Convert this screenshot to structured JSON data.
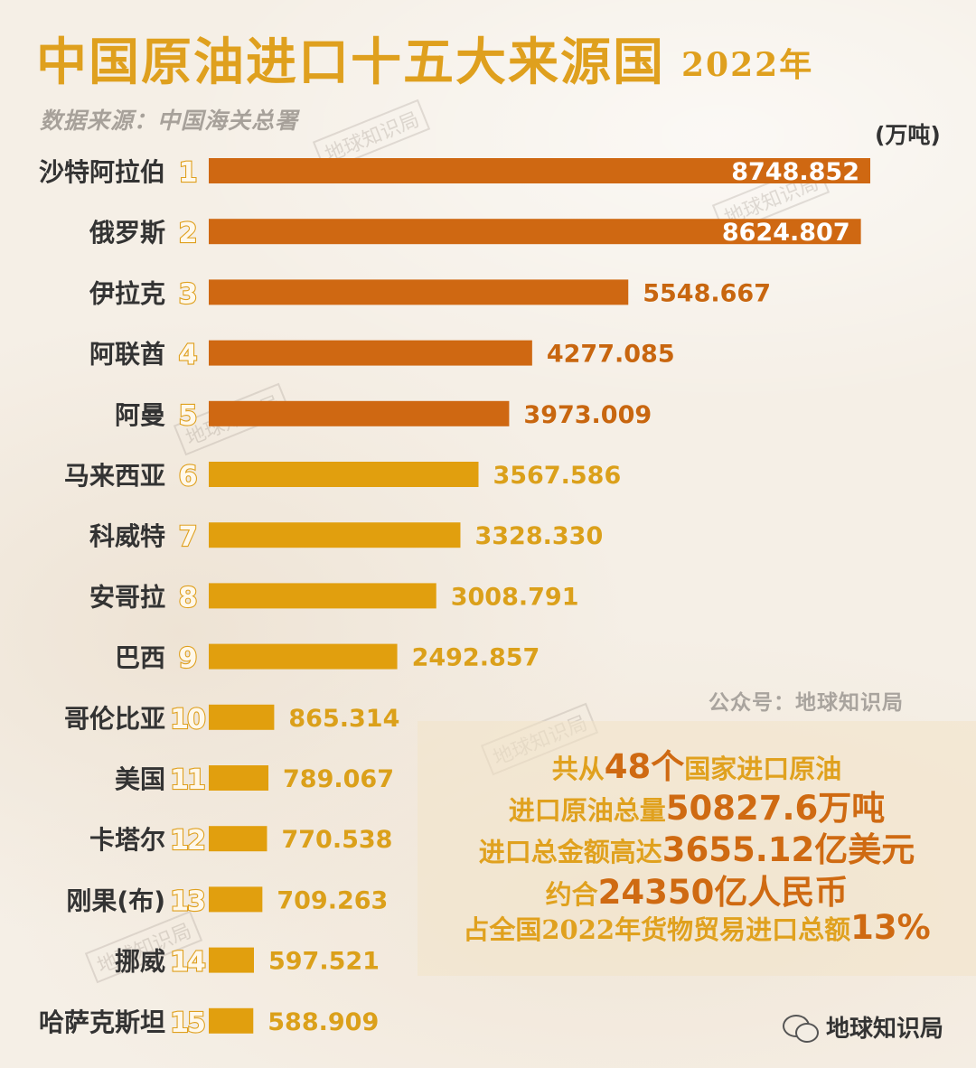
{
  "header": {
    "title": "中国原油进口十五大来源国",
    "year": "2022年",
    "source": "数据来源：中国海关总署",
    "unit": "(万吨)"
  },
  "watermark": "地球知识局",
  "credit": "公众号：地球知识局",
  "summary": {
    "line1": {
      "pre": "共从",
      "hl": "48个",
      "post": "国家进口原油"
    },
    "line2": {
      "pre": "进口原油总量",
      "hl": "50827.6万吨",
      "post": ""
    },
    "line3": {
      "pre": "进口总金额高达",
      "hl": "3655.12亿美元",
      "post": ""
    },
    "line4": {
      "pre": "约合",
      "hl": "24350亿人民币",
      "post": ""
    },
    "line5": {
      "pre": "占全国2022年货物贸易进口总额",
      "hl": "13%",
      "post": ""
    }
  },
  "footer": {
    "account": "地球知识局",
    "icon": "wechat-icon"
  },
  "colors": {
    "top5": "#cf6812",
    "rest": "#e19f0e",
    "label_top5": "#c8660f",
    "label_rest": "#dba01a",
    "number_stroke": "#dfa01e"
  },
  "chart_data": {
    "type": "bar",
    "orientation": "horizontal",
    "categories": [
      "沙特阿拉伯",
      "俄罗斯",
      "伊拉克",
      "阿联酋",
      "阿曼",
      "马来西亚",
      "科威特",
      "安哥拉",
      "巴西",
      "哥伦比亚",
      "美国",
      "卡塔尔",
      "刚果(布)",
      "挪威",
      "哈萨克斯坦"
    ],
    "ranks": [
      "1",
      "2",
      "3",
      "4",
      "5",
      "6",
      "7",
      "8",
      "9",
      "10",
      "11",
      "12",
      "13",
      "14",
      "15"
    ],
    "values": [
      8748.852,
      8624.807,
      5548.667,
      4277.085,
      3973.009,
      3567.586,
      3328.33,
      3008.791,
      2492.857,
      865.314,
      789.067,
      770.538,
      709.263,
      597.521,
      588.909
    ],
    "labels": [
      "8748.852",
      "8624.807",
      "5548.667",
      "4277.085",
      "3973.009",
      "3567.586",
      "3328.330",
      "3008.791",
      "2492.857",
      "865.314",
      "789.067",
      "770.538",
      "709.263",
      "597.521",
      "588.909"
    ],
    "xlim": [
      0,
      8748.852
    ]
  }
}
